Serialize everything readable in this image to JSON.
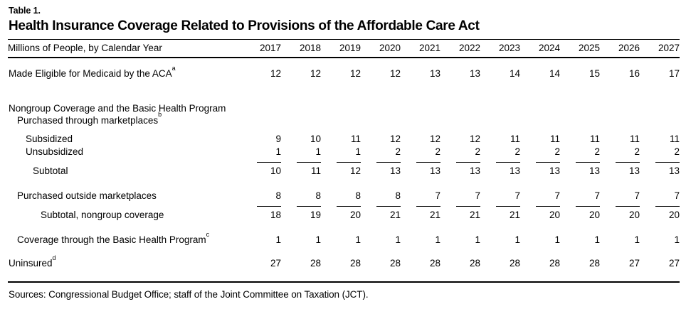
{
  "meta": {
    "table_label": "Table 1.",
    "title": "Health Insurance Coverage Related to Provisions of the Affordable Care Act"
  },
  "table": {
    "header_label": "Millions of People, by Calendar Year",
    "years": [
      "2017",
      "2018",
      "2019",
      "2020",
      "2021",
      "2022",
      "2023",
      "2024",
      "2025",
      "2026",
      "2027"
    ],
    "rows": [
      {
        "type": "spacer",
        "h": 13
      },
      {
        "type": "data",
        "label": "Made Eligible for Medicaid by the ACA",
        "sup": "a",
        "indent": 0,
        "h": 20,
        "values": [
          12,
          12,
          12,
          12,
          13,
          13,
          14,
          14,
          15,
          16,
          17
        ]
      },
      {
        "type": "spacer",
        "h": 30
      },
      {
        "type": "label",
        "label": "Nongroup Coverage and the Basic Health Program",
        "indent": 0,
        "h": 17
      },
      {
        "type": "label",
        "label": "Purchased through marketplaces",
        "sup": "b",
        "indent": 1,
        "h": 17
      },
      {
        "type": "spacer",
        "h": 9
      },
      {
        "type": "data",
        "label": "Subsidized",
        "indent": 2,
        "h": 18,
        "values": [
          9,
          10,
          11,
          12,
          12,
          12,
          11,
          11,
          11,
          11,
          11
        ]
      },
      {
        "type": "data",
        "label": "Unsubsidized",
        "indent": 2,
        "h": 18,
        "values": [
          1,
          1,
          1,
          2,
          2,
          2,
          2,
          2,
          2,
          2,
          2
        ]
      },
      {
        "type": "rule",
        "h": 9
      },
      {
        "type": "data",
        "label": "Subtotal",
        "indent": 3,
        "h": 18,
        "values": [
          10,
          11,
          12,
          13,
          13,
          13,
          13,
          13,
          13,
          13,
          13
        ]
      },
      {
        "type": "spacer",
        "h": 17
      },
      {
        "type": "data",
        "label": "Purchased outside marketplaces",
        "indent": 1,
        "h": 18,
        "values": [
          8,
          8,
          8,
          8,
          7,
          7,
          7,
          7,
          7,
          7,
          7
        ]
      },
      {
        "type": "rule",
        "h": 9
      },
      {
        "type": "data",
        "label": "Subtotal, nongroup coverage",
        "indent": 4,
        "h": 18,
        "values": [
          18,
          19,
          20,
          21,
          21,
          21,
          21,
          20,
          20,
          20,
          20
        ]
      },
      {
        "type": "spacer",
        "h": 17
      },
      {
        "type": "data",
        "label": "Coverage through the Basic Health Program",
        "sup": "c",
        "indent": 1,
        "h": 18,
        "values": [
          1,
          1,
          1,
          1,
          1,
          1,
          1,
          1,
          1,
          1,
          1
        ]
      },
      {
        "type": "spacer",
        "h": 15
      },
      {
        "type": "data",
        "label": "Uninsured",
        "sup": "d",
        "indent": 0,
        "h": 18,
        "values": [
          27,
          28,
          28,
          28,
          28,
          28,
          28,
          28,
          28,
          27,
          27
        ]
      },
      {
        "type": "spacer",
        "h": 17
      }
    ]
  },
  "footer": {
    "sources": "Sources: Congressional Budget Office; staff of the Joint Committee on Taxation (JCT)."
  }
}
